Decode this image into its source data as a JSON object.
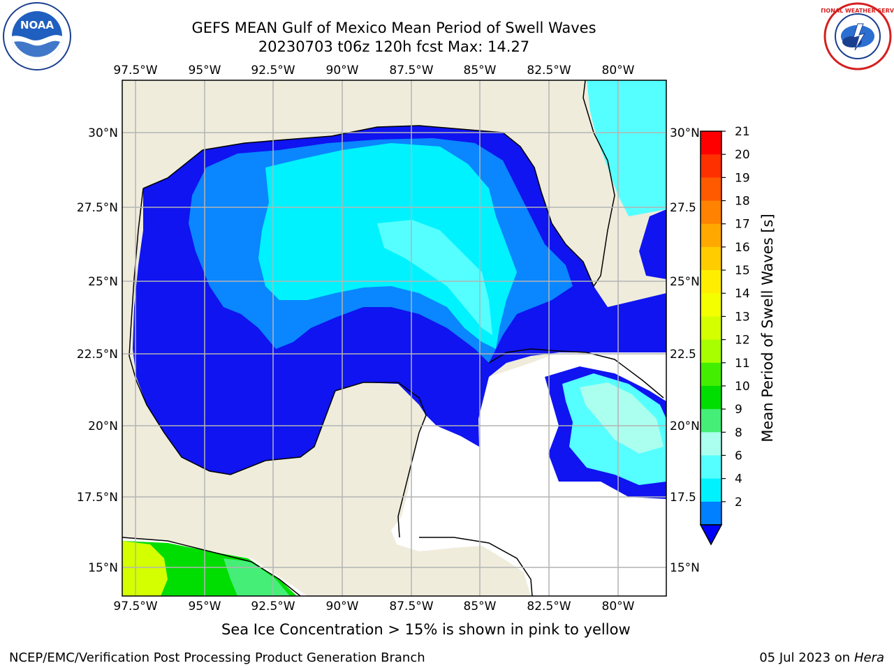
{
  "header": {
    "title_line1": "GEFS MEAN Gulf of Mexico Mean Period of Swell Waves",
    "title_line2": "20230703 t06z 120h fcst   Max: 14.27"
  },
  "logos": {
    "left": {
      "icon": "noaa-logo",
      "text": "NOAA"
    },
    "right": {
      "icon": "nws-logo",
      "text": "NATIONAL WEATHER SERVICE"
    }
  },
  "map": {
    "lon_ticks": [
      "97.5°W",
      "95°W",
      "92.5°W",
      "90°W",
      "87.5°W",
      "85°W",
      "82.5°W",
      "80°W"
    ],
    "lat_ticks_left": [
      "30°N",
      "27.5°N",
      "25°N",
      "22.5°N",
      "20°N",
      "17.5°N",
      "15°N"
    ],
    "lat_ticks_right": [
      "30°N",
      "27.5",
      "25°N",
      "22.5",
      "20°N",
      "17.5",
      "15°N"
    ],
    "colors": {
      "land": "#efecdc",
      "ocean_blank": "#ffffff",
      "grid": "#b4b4b4",
      "coast": "#000000"
    }
  },
  "colorbar": {
    "label": "Mean Period of Swell Waves [s]",
    "ticks": [
      "21",
      "20",
      "19",
      "18",
      "17",
      "16",
      "15",
      "14",
      "13",
      "12",
      "11",
      "10",
      "9",
      "8",
      "6",
      "4",
      "2"
    ],
    "colors_top_to_bottom": [
      "#ff0000",
      "#ff3000",
      "#ff5a00",
      "#ff8200",
      "#ffa800",
      "#ffcc00",
      "#ffee00",
      "#f4ff00",
      "#d4ff00",
      "#a8ff00",
      "#44ee00",
      "#00dd00",
      "#44ee77",
      "#aaffee",
      "#55ffff",
      "#00f2ff",
      "#0080ff"
    ],
    "extend_color": "#0000ff"
  },
  "captions": {
    "ice_note": "Sea Ice Concentration > 15% is shown in pink to yellow",
    "footer_left": "NCEP/EMC/Verification Post Processing Product Generation Branch",
    "footer_date": "05 Jul 2023 on ",
    "footer_host": "Hera"
  }
}
